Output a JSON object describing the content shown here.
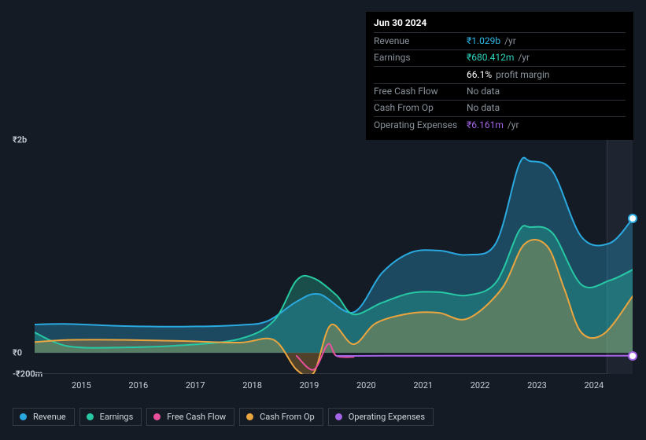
{
  "background_color": "#151b24",
  "tooltip": {
    "date": "Jun 30 2024",
    "rows": [
      {
        "label": "Revenue",
        "value": "₹1.029b",
        "value_color": "#2eb8e6",
        "unit": "/yr"
      },
      {
        "label": "Earnings",
        "value": "₹680.412m",
        "value_color": "#2dd4bf",
        "unit": "/yr"
      },
      {
        "label": "",
        "value": "66.1%",
        "value_color": "#ffffff",
        "unit": "profit margin"
      },
      {
        "label": "Free Cash Flow",
        "value": "No data",
        "value_color": "#8a929c",
        "unit": ""
      },
      {
        "label": "Cash From Op",
        "value": "No data",
        "value_color": "#8a929c",
        "unit": ""
      },
      {
        "label": "Operating Expenses",
        "value": "₹6.161m",
        "value_color": "#a464e6",
        "unit": "/yr"
      }
    ]
  },
  "chart": {
    "type": "area",
    "y_ticks": [
      {
        "label": "₹2b",
        "v": 2000
      },
      {
        "label": "₹0",
        "v": 0
      },
      {
        "label": "-₹200m",
        "v": -200
      }
    ],
    "x_ticks": [
      "2015",
      "2016",
      "2017",
      "2018",
      "2019",
      "2020",
      "2021",
      "2022",
      "2023",
      "2024"
    ],
    "x_min": 2014.4,
    "x_max": 2024.9,
    "y_min": -200,
    "y_max": 2000,
    "vline_at": 2024.45,
    "vline_color": "#323a45",
    "shade_from": 2024.45,
    "shade_color": "#1e2530",
    "grid_color": "#2d3440",
    "series": [
      {
        "name": "Revenue",
        "color": "#2aa9e0",
        "fill_opacity": 0.32,
        "points": [
          [
            2014.4,
            265
          ],
          [
            2015,
            270
          ],
          [
            2016,
            250
          ],
          [
            2017,
            245
          ],
          [
            2018,
            260
          ],
          [
            2018.5,
            300
          ],
          [
            2019,
            480
          ],
          [
            2019.4,
            550
          ],
          [
            2020,
            380
          ],
          [
            2020.5,
            750
          ],
          [
            2021,
            940
          ],
          [
            2021.5,
            960
          ],
          [
            2022,
            920
          ],
          [
            2022.5,
            1030
          ],
          [
            2022.9,
            1760
          ],
          [
            2023.1,
            1800
          ],
          [
            2023.5,
            1700
          ],
          [
            2024,
            1090
          ],
          [
            2024.5,
            1030
          ],
          [
            2024.9,
            1260
          ]
        ]
      },
      {
        "name": "Earnings",
        "color": "#27c8a4",
        "fill_opacity": 0.3,
        "points": [
          [
            2014.4,
            190
          ],
          [
            2015,
            60
          ],
          [
            2016,
            50
          ],
          [
            2017,
            70
          ],
          [
            2018,
            130
          ],
          [
            2018.6,
            300
          ],
          [
            2019,
            680
          ],
          [
            2019.3,
            700
          ],
          [
            2019.7,
            540
          ],
          [
            2020,
            360
          ],
          [
            2020.5,
            470
          ],
          [
            2021,
            560
          ],
          [
            2021.5,
            570
          ],
          [
            2022,
            540
          ],
          [
            2022.5,
            660
          ],
          [
            2022.9,
            1140
          ],
          [
            2023.1,
            1180
          ],
          [
            2023.5,
            1120
          ],
          [
            2024,
            640
          ],
          [
            2024.5,
            680
          ],
          [
            2024.9,
            780
          ]
        ]
      },
      {
        "name": "Cash From Op",
        "color": "#eba53e",
        "fill_opacity": 0.28,
        "points": [
          [
            2014.4,
            100
          ],
          [
            2015,
            120
          ],
          [
            2016,
            120
          ],
          [
            2017,
            110
          ],
          [
            2018,
            95
          ],
          [
            2018.6,
            120
          ],
          [
            2019,
            -160
          ],
          [
            2019.3,
            -190
          ],
          [
            2019.6,
            260
          ],
          [
            2020,
            80
          ],
          [
            2020.4,
            280
          ],
          [
            2021,
            370
          ],
          [
            2021.5,
            375
          ],
          [
            2022,
            320
          ],
          [
            2022.6,
            600
          ],
          [
            2023,
            1020
          ],
          [
            2023.4,
            1000
          ],
          [
            2023.7,
            600
          ],
          [
            2024,
            190
          ],
          [
            2024.4,
            180
          ],
          [
            2024.9,
            530
          ]
        ]
      },
      {
        "name": "Free Cash Flow",
        "color": "#e84f9c",
        "fill_opacity": 0.0,
        "points": [
          [
            2019.0,
            -30
          ],
          [
            2019.3,
            -160
          ],
          [
            2019.55,
            80
          ],
          [
            2019.7,
            -30
          ],
          [
            2020.0,
            -40
          ]
        ]
      },
      {
        "name": "Operating Expenses",
        "color": "#a464e6",
        "fill_opacity": 0.0,
        "points": [
          [
            2019.7,
            -30
          ],
          [
            2020,
            -30
          ],
          [
            2021,
            -28
          ],
          [
            2022,
            -28
          ],
          [
            2023,
            -28
          ],
          [
            2024,
            -28
          ],
          [
            2024.9,
            -28
          ]
        ]
      }
    ],
    "markers": [
      {
        "x": 2024.9,
        "y": 1260,
        "stroke": "#2aa9e0"
      },
      {
        "x": 2024.9,
        "y": -28,
        "stroke": "#a464e6"
      }
    ]
  },
  "legend": [
    {
      "label": "Revenue",
      "color": "#2aa9e0"
    },
    {
      "label": "Earnings",
      "color": "#27c8a4"
    },
    {
      "label": "Free Cash Flow",
      "color": "#e84f9c"
    },
    {
      "label": "Cash From Op",
      "color": "#eba53e"
    },
    {
      "label": "Operating Expenses",
      "color": "#a464e6"
    }
  ]
}
